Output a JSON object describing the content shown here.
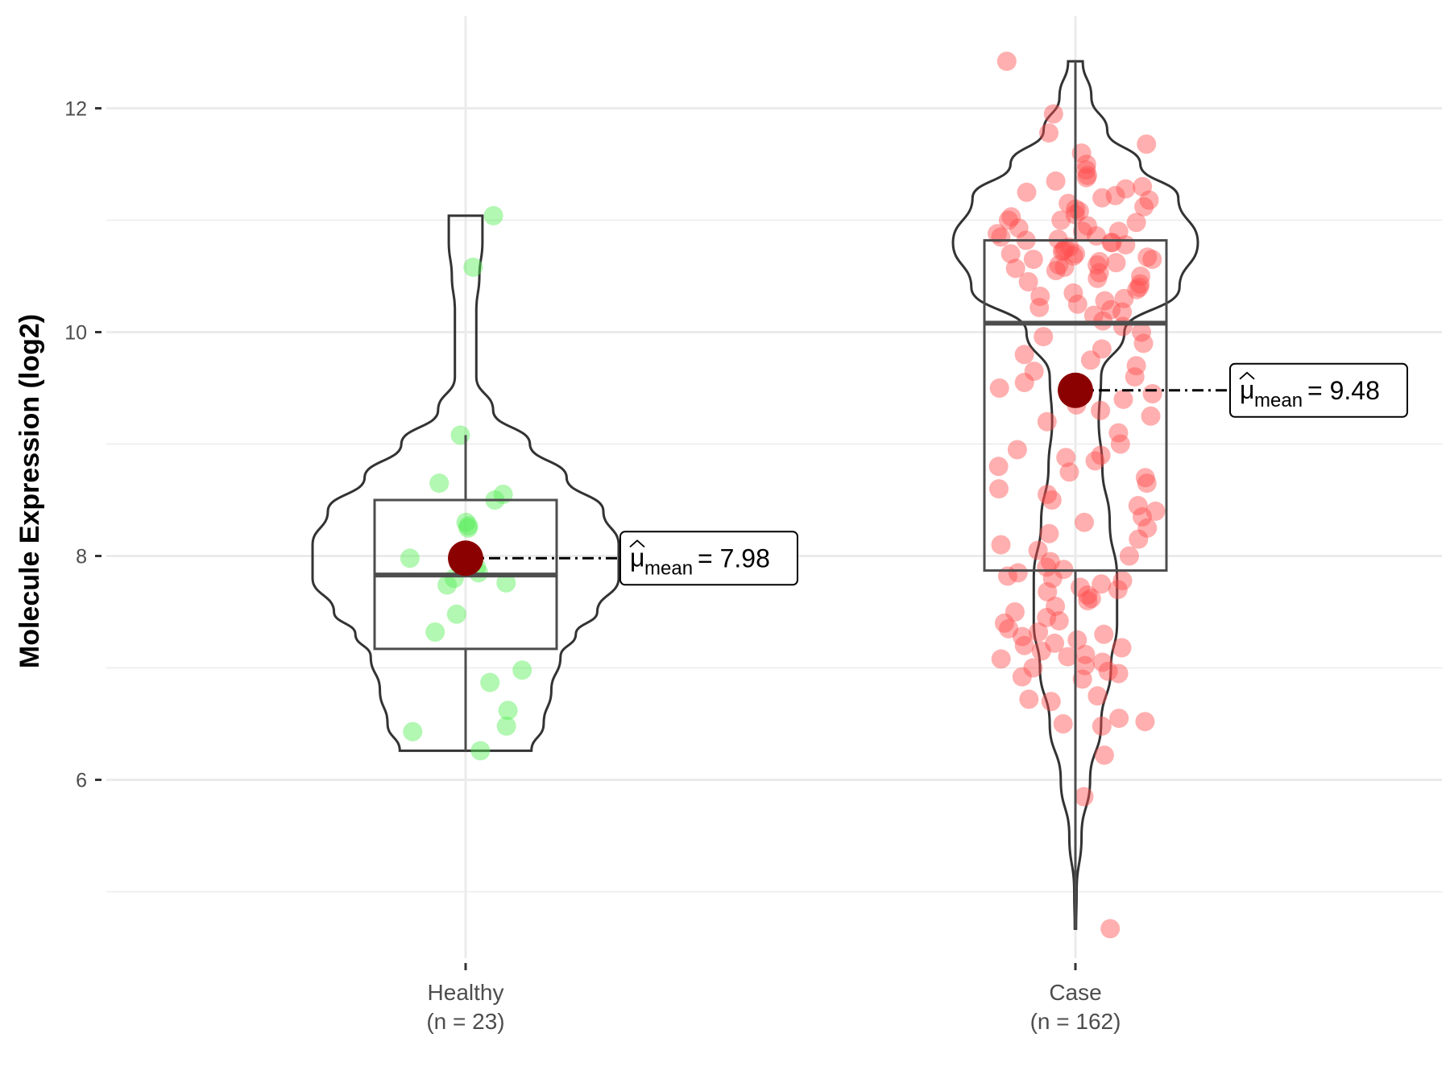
{
  "chart_data": {
    "type": "violin",
    "title": "",
    "xlabel": "",
    "ylabel": "Molecule Expression (log2)",
    "ylim": [
      4.3,
      12.8
    ],
    "yticks": [
      6,
      8,
      10,
      12
    ],
    "grid": true,
    "categories": [
      {
        "label": "Healthy",
        "n_label": "(n = 23)"
      },
      {
        "label": "Case",
        "n_label": "(n = 162)"
      }
    ],
    "groups": [
      {
        "name": "Healthy",
        "point_color": "#55ee55",
        "box": {
          "q1": 7.17,
          "median": 7.83,
          "q3": 8.5,
          "whisker_low": 6.26,
          "whisker_high": 9.08
        },
        "mean": 7.98,
        "mean_label": "= 7.98",
        "violin_range": [
          6.26,
          11.04
        ],
        "violin_profile": [
          [
            6.26,
            0.43
          ],
          [
            6.5,
            0.51
          ],
          [
            6.8,
            0.56
          ],
          [
            7.1,
            0.62
          ],
          [
            7.3,
            0.72
          ],
          [
            7.5,
            0.86
          ],
          [
            7.8,
            1.0
          ],
          [
            8.1,
            1.0
          ],
          [
            8.4,
            0.9
          ],
          [
            8.7,
            0.66
          ],
          [
            9.0,
            0.42
          ],
          [
            9.3,
            0.18
          ],
          [
            9.6,
            0.07
          ],
          [
            9.9,
            0.07
          ],
          [
            10.2,
            0.07
          ],
          [
            10.5,
            0.09
          ],
          [
            10.8,
            0.11
          ],
          [
            11.04,
            0.11
          ]
        ],
        "points": [
          11.04,
          10.58,
          9.08,
          8.65,
          8.55,
          8.5,
          8.3,
          8.27,
          8.25,
          7.98,
          7.9,
          7.85,
          7.8,
          7.76,
          7.74,
          7.48,
          7.32,
          6.98,
          6.87,
          6.62,
          6.48,
          6.43,
          6.26
        ]
      },
      {
        "name": "Case",
        "point_color": "#ff4d4d",
        "box": {
          "q1": 7.87,
          "median": 10.08,
          "q3": 10.82,
          "whisker_low": 4.67,
          "whisker_high": 12.42
        },
        "mean": 9.48,
        "mean_label": "= 9.48",
        "violin_range": [
          4.67,
          12.42
        ],
        "violin_profile": [
          [
            4.67,
            0.005
          ],
          [
            5.0,
            0.01
          ],
          [
            5.5,
            0.05
          ],
          [
            6.0,
            0.12
          ],
          [
            6.5,
            0.21
          ],
          [
            7.0,
            0.29
          ],
          [
            7.4,
            0.34
          ],
          [
            7.8,
            0.34
          ],
          [
            8.3,
            0.28
          ],
          [
            8.8,
            0.22
          ],
          [
            9.2,
            0.19
          ],
          [
            9.6,
            0.21
          ],
          [
            10.0,
            0.4
          ],
          [
            10.4,
            0.85
          ],
          [
            10.8,
            1.0
          ],
          [
            11.2,
            0.84
          ],
          [
            11.5,
            0.53
          ],
          [
            11.8,
            0.26
          ],
          [
            12.1,
            0.13
          ],
          [
            12.42,
            0.06
          ]
        ],
        "points": [
          12.42,
          11.95,
          11.78,
          11.68,
          11.6,
          11.5,
          11.45,
          11.4,
          11.38,
          11.35,
          11.3,
          11.28,
          11.25,
          11.22,
          11.2,
          11.18,
          11.15,
          11.12,
          11.1,
          11.08,
          11.05,
          11.03,
          11.0,
          11.0,
          10.98,
          10.95,
          10.93,
          10.9,
          10.9,
          10.88,
          10.86,
          10.85,
          10.83,
          10.82,
          10.8,
          10.8,
          10.78,
          10.76,
          10.75,
          10.73,
          10.72,
          10.7,
          10.7,
          10.68,
          10.67,
          10.65,
          10.65,
          10.63,
          10.62,
          10.6,
          10.6,
          10.58,
          10.57,
          10.55,
          10.53,
          10.5,
          10.48,
          10.45,
          10.43,
          10.4,
          10.38,
          10.35,
          10.32,
          10.3,
          10.28,
          10.25,
          10.22,
          10.2,
          10.18,
          10.15,
          10.1,
          10.05,
          10.0,
          9.96,
          9.9,
          9.85,
          9.8,
          9.75,
          9.7,
          9.65,
          9.6,
          9.55,
          9.5,
          9.45,
          9.4,
          9.35,
          9.3,
          9.25,
          9.2,
          9.1,
          9.0,
          8.95,
          8.9,
          8.88,
          8.85,
          8.8,
          8.75,
          8.7,
          8.65,
          8.6,
          8.55,
          8.5,
          8.45,
          8.4,
          8.35,
          8.3,
          8.25,
          8.2,
          8.15,
          8.1,
          8.05,
          8.0,
          7.95,
          7.9,
          7.88,
          7.85,
          7.82,
          7.8,
          7.78,
          7.75,
          7.72,
          7.7,
          7.68,
          7.65,
          7.62,
          7.6,
          7.55,
          7.5,
          7.45,
          7.42,
          7.4,
          7.35,
          7.32,
          7.3,
          7.28,
          7.25,
          7.22,
          7.2,
          7.18,
          7.15,
          7.12,
          7.1,
          7.08,
          7.05,
          7.02,
          7.0,
          6.97,
          6.95,
          6.92,
          6.9,
          6.75,
          6.72,
          6.7,
          6.55,
          6.52,
          6.5,
          6.48,
          6.22,
          5.85,
          4.67
        ]
      }
    ]
  }
}
